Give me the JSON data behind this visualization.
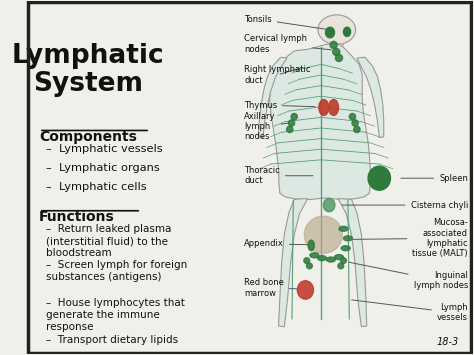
{
  "title": "Lymphatic\nSystem",
  "bg_color": "#f0f0eb",
  "border_color": "#222222",
  "text_color": "#111111",
  "components_header": "Components",
  "components_items": [
    "Lymphatic vessels",
    "Lymphatic organs",
    "Lymphatic cells"
  ],
  "functions_header": "Functions",
  "functions_items": [
    "Return leaked plasma\n(interstitial fluid) to the\nbloodstream",
    "Screen lymph for foreign\nsubstances (antigens)",
    "House lymphocytes that\ngenerate the immune\nresponse",
    "Transport dietary lipids"
  ],
  "page_num": "18-3",
  "body_color": "#dce8e2",
  "line_color": "#5a9e78",
  "organ_green_dark": "#2d7a3a",
  "organ_red": "#c0392b",
  "organ_tan": "#b8a88a"
}
